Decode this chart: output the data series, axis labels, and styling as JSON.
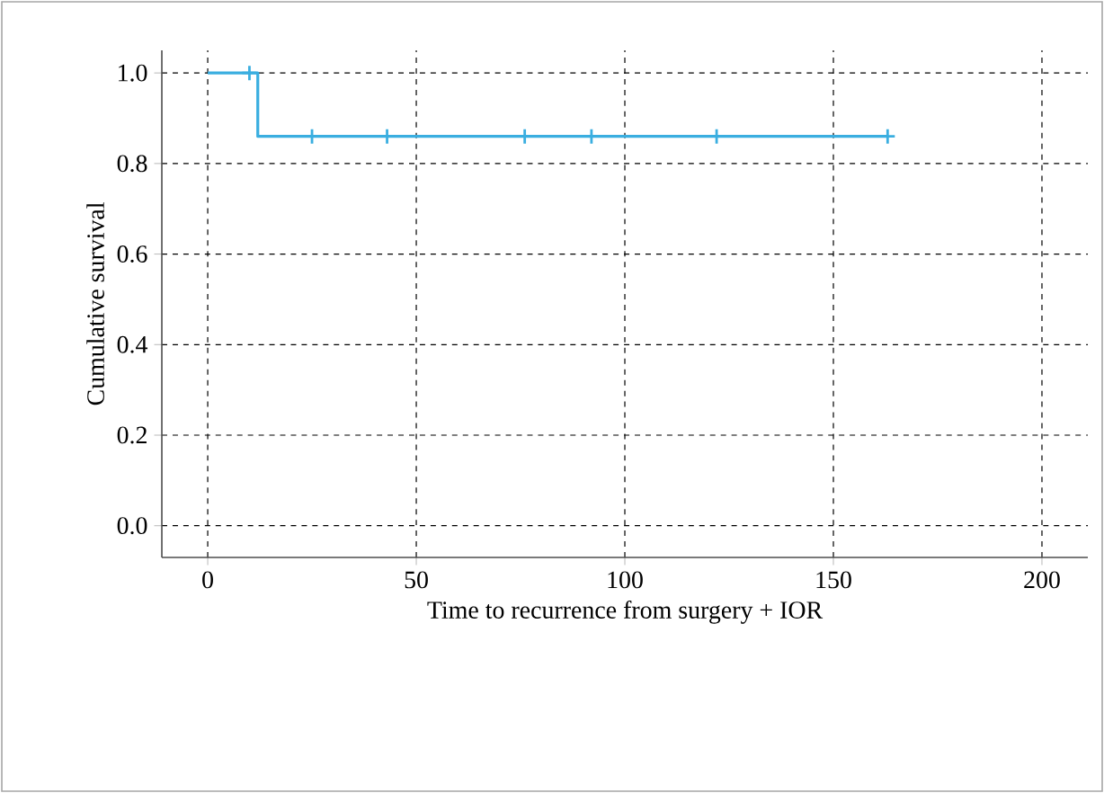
{
  "chart_data": {
    "type": "step",
    "xlabel": "Time to recurrence from surgery + IOR",
    "ylabel": "Cumulative survival",
    "xlim": [
      -11,
      211
    ],
    "ylim": [
      -0.07,
      1.05
    ],
    "xticks": [
      0,
      50,
      100,
      150,
      200
    ],
    "yticks": [
      {
        "value": 0,
        "label": "0.0"
      },
      {
        "value": 0.2,
        "label": "0.2"
      },
      {
        "value": 0.4,
        "label": "0.4"
      },
      {
        "value": 0.6,
        "label": "0.6"
      },
      {
        "value": 0.8,
        "label": "0.8"
      },
      {
        "value": 1,
        "label": "1.0"
      }
    ],
    "grid": true,
    "series": [
      {
        "color": "#3aaee0",
        "x": [
          0,
          12,
          163
        ],
        "values": [
          1,
          0.86,
          0.86
        ],
        "marker": "none"
      },
      {
        "type": "scatter",
        "color": "#3aaee0",
        "x": [
          10,
          25,
          43,
          76,
          92,
          122,
          163
        ],
        "values": [
          1,
          0.86,
          0.86,
          0.86,
          0.86,
          0.86,
          0.86
        ],
        "marker": "cross"
      }
    ]
  }
}
